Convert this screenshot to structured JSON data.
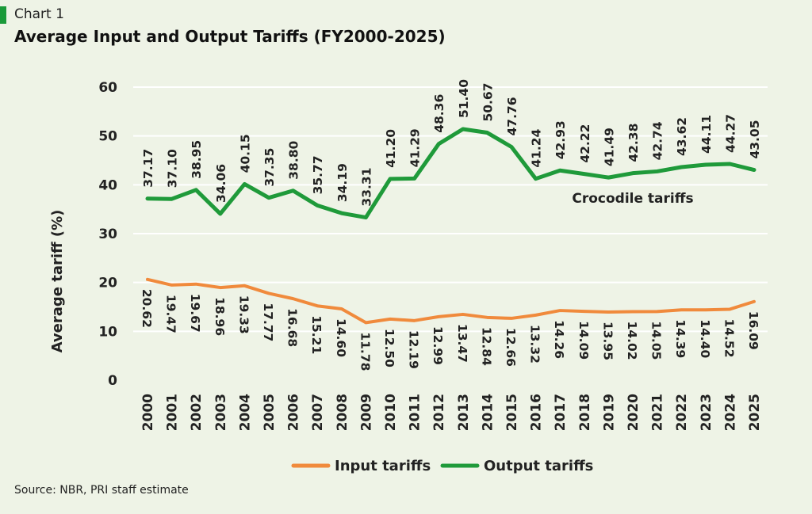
{
  "header": {
    "chart_number": "Chart 1",
    "title": "Average Input and Output Tariffs (FY2000-2025)"
  },
  "source": "Source: NBR, PRI staff estimate",
  "colors": {
    "input": "#f08a3c",
    "output": "#1f9a3a",
    "grid": "#ffffff",
    "background": "#eef3e6"
  },
  "chart_data": {
    "type": "line",
    "title": "Average Input and Output Tariffs (FY2000-2025)",
    "xlabel": "",
    "ylabel": "Average tariff  (%)",
    "ylim": [
      0,
      60
    ],
    "yticks": [
      0,
      10,
      20,
      30,
      40,
      50,
      60
    ],
    "grid": true,
    "legend_position": "bottom",
    "x": [
      "2000",
      "2001",
      "2002",
      "2003",
      "2004",
      "2005",
      "2006",
      "2007",
      "2008",
      "2009",
      "2010",
      "2011",
      "2012",
      "2013",
      "2014",
      "2015",
      "2016",
      "2017",
      "2018",
      "2019",
      "2020",
      "2021",
      "2022",
      "2023",
      "2024",
      "2025"
    ],
    "series": [
      {
        "name": "Input tariffs",
        "key": "input",
        "values": [
          20.62,
          19.47,
          19.67,
          18.96,
          19.33,
          17.77,
          16.68,
          15.21,
          14.6,
          11.78,
          12.5,
          12.19,
          12.99,
          13.47,
          12.84,
          12.66,
          13.32,
          14.26,
          14.09,
          13.95,
          14.02,
          14.05,
          14.39,
          14.4,
          14.52,
          16.09
        ],
        "labels": [
          "20.62",
          "19.47",
          "19.67",
          "18.96",
          "19.33",
          "17.77",
          "16.68",
          "15.21",
          "14.60",
          "11.78",
          "12.50",
          "12.19",
          "12.99",
          "13.47",
          "12.84",
          "12.66",
          "13.32",
          "14.26",
          "14.09",
          "13.95",
          "14.02",
          "14.05",
          "14.39",
          "14.40",
          "14.52",
          "16.09"
        ]
      },
      {
        "name": "Output tariffs",
        "key": "output",
        "values": [
          37.17,
          37.1,
          38.95,
          34.06,
          40.15,
          37.35,
          38.8,
          35.77,
          34.19,
          33.31,
          41.2,
          41.29,
          48.36,
          51.4,
          50.67,
          47.76,
          41.24,
          42.93,
          42.22,
          41.49,
          42.38,
          42.74,
          43.62,
          44.11,
          44.27,
          43.05
        ],
        "labels": [
          "37.17",
          "37.10",
          "38.95",
          "34.06",
          "40.15",
          "37.35",
          "38.80",
          "35.77",
          "34.19",
          "33.31",
          "41.20",
          "41.29",
          "48.36",
          "51.40",
          "50.67",
          "47.76",
          "41.24",
          "42.93",
          "42.22",
          "41.49",
          "42.38",
          "42.74",
          "43.62",
          "44.11",
          "44.27",
          "43.05"
        ]
      }
    ],
    "annotations": [
      {
        "text": "Crocodile tariffs",
        "x": "2020",
        "y": 35
      }
    ]
  }
}
